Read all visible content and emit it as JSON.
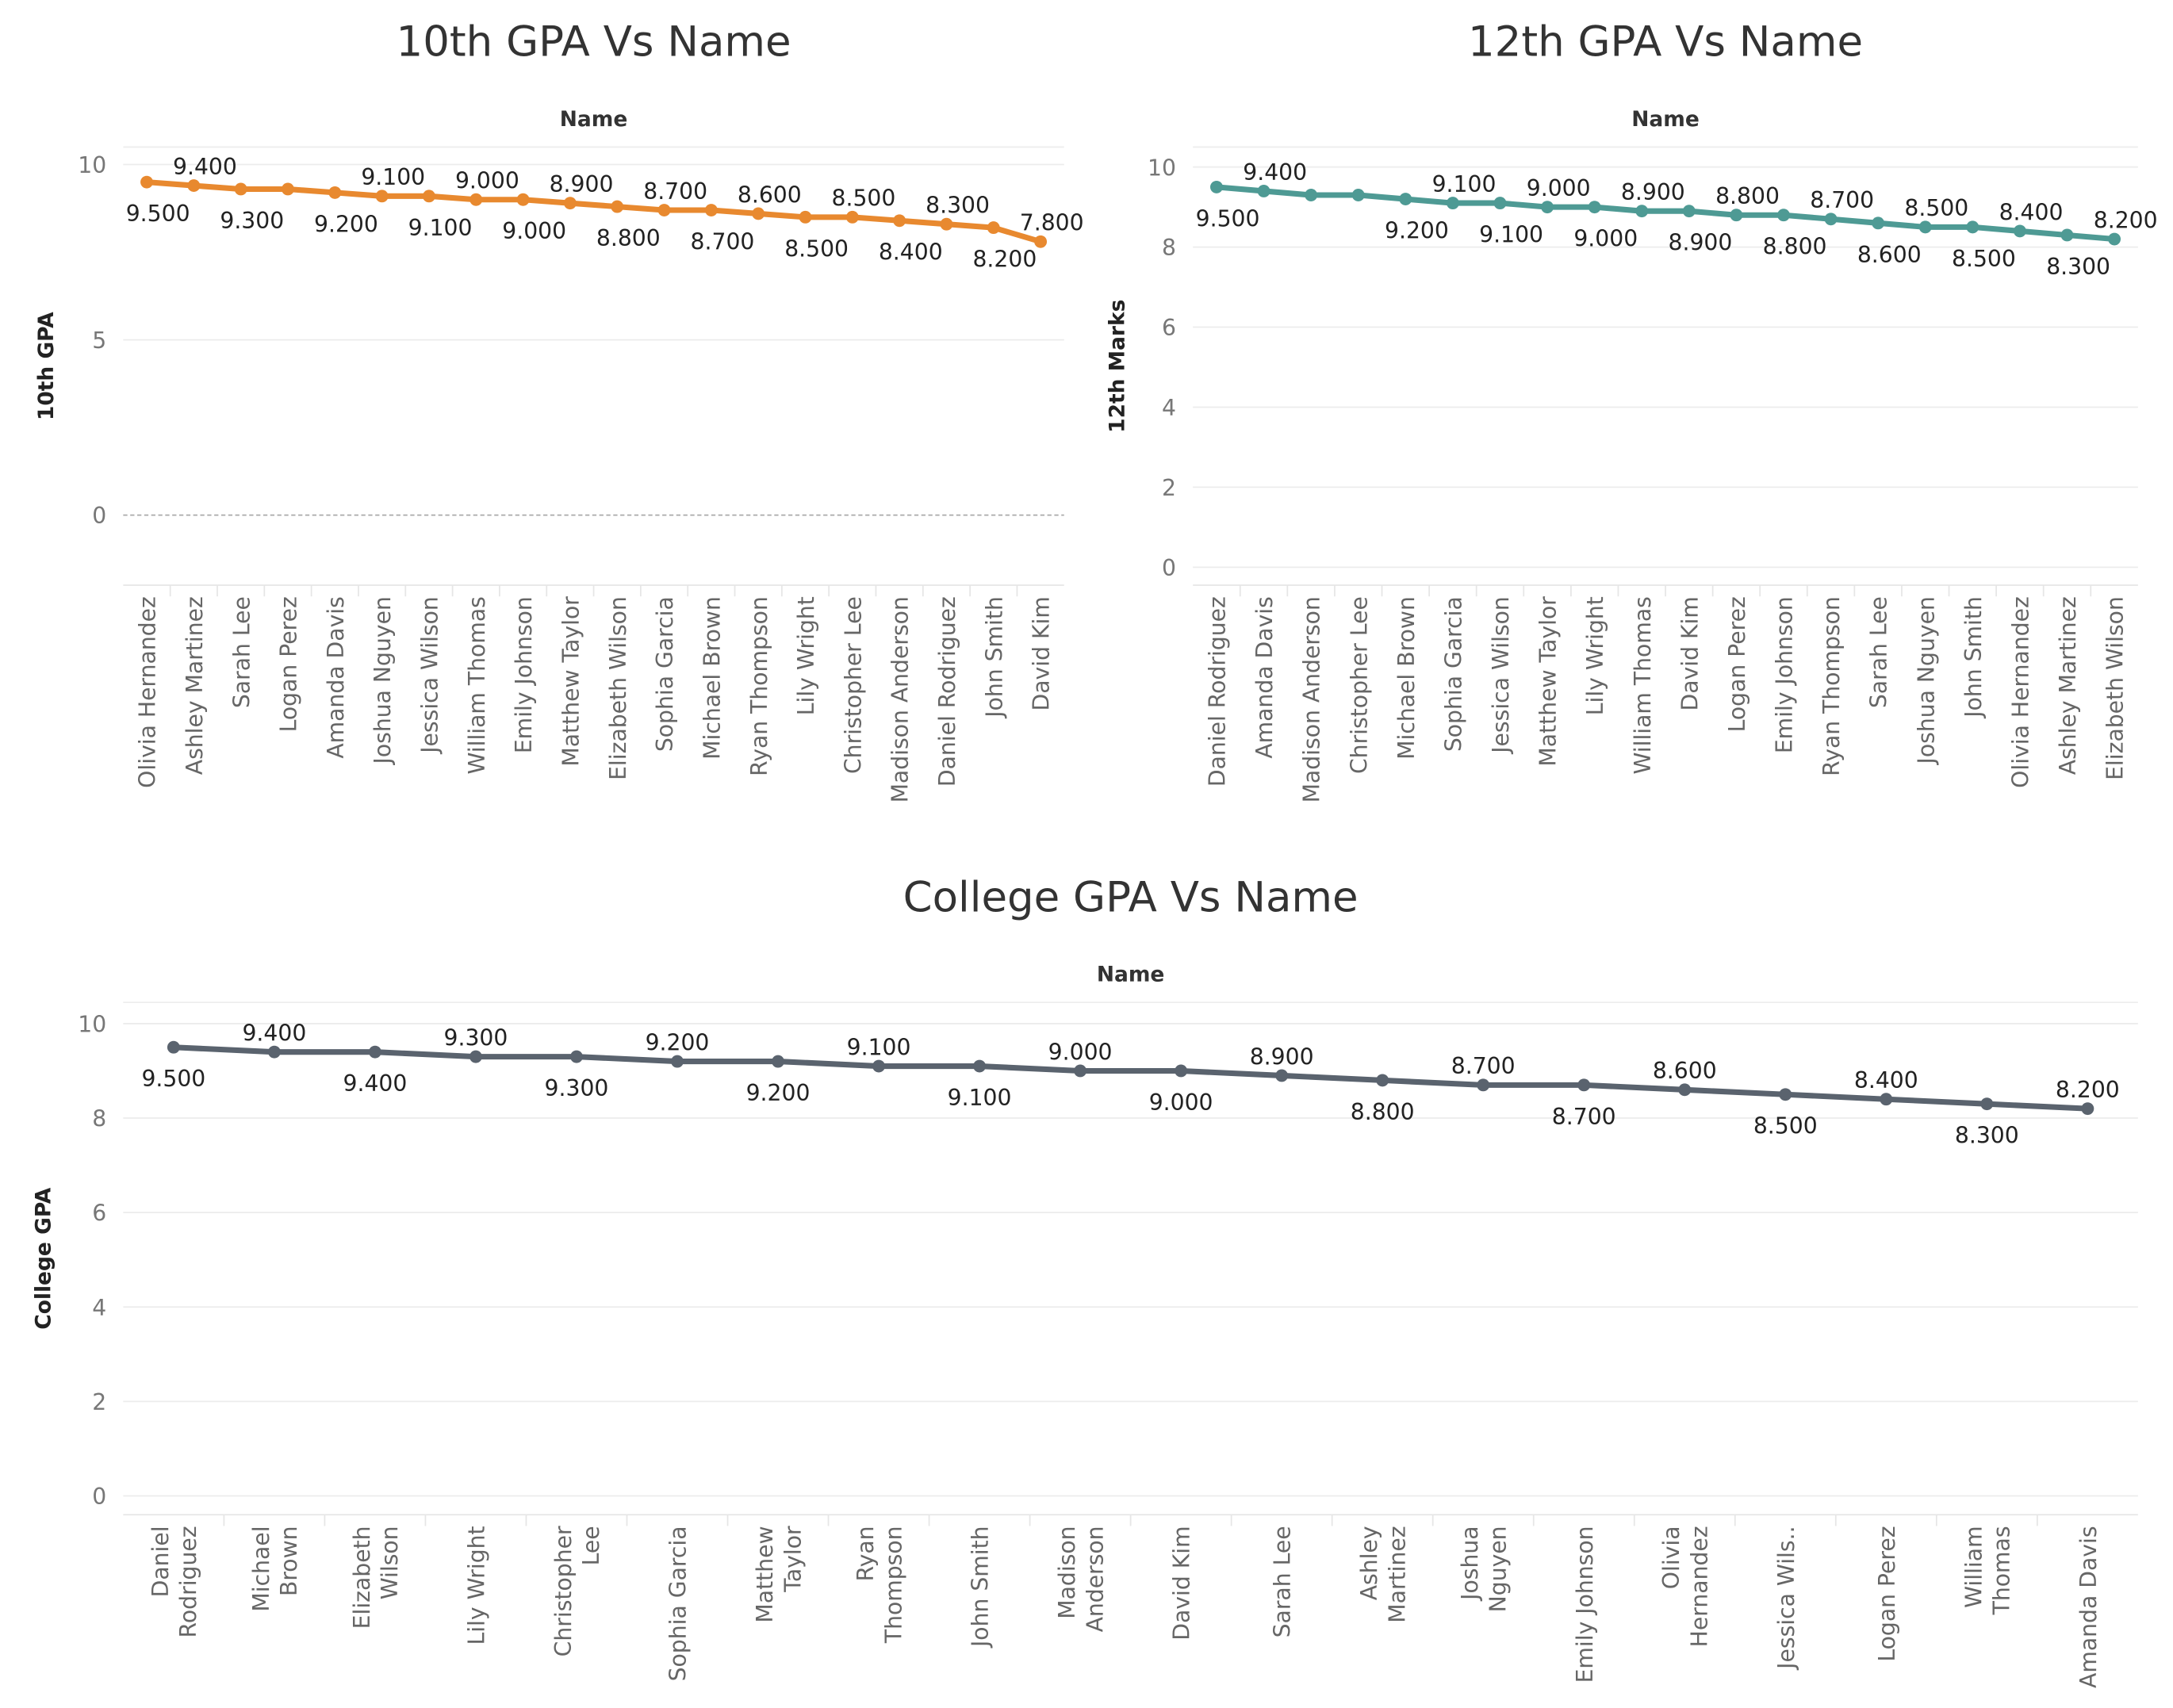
{
  "chart_data": [
    {
      "type": "line",
      "title": "10th GPA Vs Name",
      "x_axis_title": "Name",
      "y_axis_title": "10th GPA",
      "categories": [
        "Olivia Hernandez",
        "Ashley Martinez",
        "Sarah Lee",
        "Logan Perez",
        "Amanda Davis",
        "Joshua Nguyen",
        "Jessica Wilson",
        "William Thomas",
        "Emily Johnson",
        "Matthew Taylor",
        "Elizabeth Wilson",
        "Sophia Garcia",
        "Michael Brown",
        "Ryan Thompson",
        "Lily Wright",
        "Christopher Lee",
        "Madison Anderson",
        "Daniel Rodriguez",
        "John Smith",
        "David Kim"
      ],
      "values": [
        9.5,
        9.4,
        9.3,
        9.3,
        9.2,
        9.1,
        9.1,
        9.0,
        9.0,
        8.9,
        8.8,
        8.7,
        8.7,
        8.6,
        8.5,
        8.5,
        8.4,
        8.3,
        8.2,
        7.8
      ],
      "value_labels": [
        "9.500",
        "9.400",
        "9.300",
        null,
        "9.200",
        "9.100",
        "9.100",
        "9.000",
        "9.000",
        "8.900",
        "8.800",
        "8.700",
        "8.700",
        "8.600",
        "8.500",
        "8.500",
        "8.400",
        "8.300",
        "8.200",
        "7.800"
      ],
      "color": "#e8892f",
      "ylim": [
        -2,
        10.5
      ],
      "yticks": [
        0,
        5,
        10
      ],
      "grid": true,
      "zero_line": true
    },
    {
      "type": "line",
      "title": "12th GPA Vs Name",
      "x_axis_title": "Name",
      "y_axis_title": "12th Marks",
      "categories": [
        "Daniel Rodriguez",
        "Amanda Davis",
        "Madison Anderson",
        "Christopher Lee",
        "Michael Brown",
        "Sophia Garcia",
        "Jessica Wilson",
        "Matthew Taylor",
        "Lily Wright",
        "William Thomas",
        "David Kim",
        "Logan Perez",
        "Emily Johnson",
        "Ryan Thompson",
        "Sarah Lee",
        "Joshua Nguyen",
        "John Smith",
        "Olivia Hernandez",
        "Ashley Martinez",
        "Elizabeth Wilson"
      ],
      "values": [
        9.5,
        9.4,
        9.3,
        9.3,
        9.2,
        9.1,
        9.1,
        9.0,
        9.0,
        8.9,
        8.9,
        8.8,
        8.8,
        8.7,
        8.6,
        8.5,
        8.5,
        8.4,
        8.3,
        8.2
      ],
      "value_labels": [
        "9.500",
        "9.400",
        null,
        null,
        "9.200",
        "9.100",
        "9.100",
        "9.000",
        "9.000",
        "8.900",
        "8.900",
        "8.800",
        "8.800",
        "8.700",
        "8.600",
        "8.500",
        "8.500",
        "8.400",
        "8.300",
        "8.200"
      ],
      "color": "#4e9a94",
      "ylim": [
        -0.45,
        10.5
      ],
      "yticks": [
        0,
        2,
        4,
        6,
        8,
        10
      ],
      "grid": true
    },
    {
      "type": "line",
      "title": "College GPA Vs Name",
      "x_axis_title": "Name",
      "y_axis_title": "College GPA",
      "categories": [
        "Daniel Rodriguez",
        "Michael Brown",
        "Elizabeth Wilson",
        "Lily Wright",
        "Christopher Lee",
        "Sophia Garcia",
        "Matthew Taylor",
        "Ryan Thompson",
        "John Smith",
        "Madison Anderson",
        "David Kim",
        "Sarah Lee",
        "Ashley Martinez",
        "Joshua Nguyen",
        "Emily Johnson",
        "Olivia Hernandez",
        "Jessica Wils..",
        "Logan Perez",
        "William Thomas",
        "Amanda Davis"
      ],
      "values": [
        9.5,
        9.4,
        9.4,
        9.3,
        9.3,
        9.2,
        9.2,
        9.1,
        9.1,
        9.0,
        9.0,
        8.9,
        8.8,
        8.7,
        8.7,
        8.6,
        8.5,
        8.4,
        8.3,
        8.2
      ],
      "value_labels": [
        "9.500",
        "9.400",
        "9.400",
        "9.300",
        "9.300",
        "9.200",
        "9.200",
        "9.100",
        "9.100",
        "9.000",
        "9.000",
        "8.900",
        "8.800",
        "8.700",
        "8.700",
        "8.600",
        "8.500",
        "8.400",
        "8.300",
        "8.200"
      ],
      "color": "#5a636e",
      "ylim": [
        -0.4,
        10.45
      ],
      "yticks": [
        0,
        2,
        4,
        6,
        8,
        10
      ],
      "grid": true
    }
  ]
}
